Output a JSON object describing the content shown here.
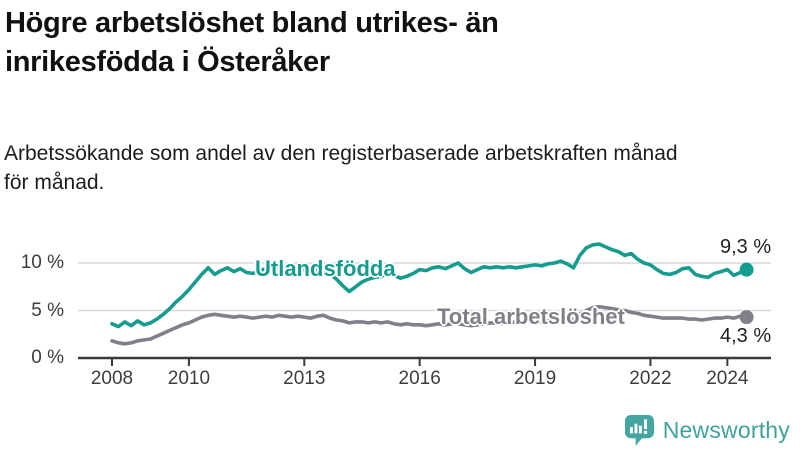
{
  "title": {
    "line1": "Högre arbetslöshet bland utrikes- än",
    "line2": "inrikesfödda i Österåker"
  },
  "subtitle": {
    "line1": "Arbetssökande som andel av den registerbaserade arbetskraften månad",
    "line2": "för månad."
  },
  "footer": {
    "brand": "Newsworthy",
    "logo_icon": "newsworthy-speech-bubble-bar-chart-icon",
    "brand_color": "#3ea39b"
  },
  "colors": {
    "background": "#ffffff",
    "title_text": "#111111",
    "axis": "#3a3a3a",
    "gridline": "#d9d9d9",
    "tick_text": "#3d3d3d",
    "value_text": "#1f1f1f"
  },
  "chart_data": {
    "type": "line",
    "unit": "%",
    "x_start_year": 2008,
    "x_step_years": 0.166667,
    "x_end_year": 2024.5,
    "x_ticks": [
      2008,
      2010,
      2013,
      2016,
      2019,
      2022,
      2024
    ],
    "x_tick_labels": [
      "2008",
      "2010",
      "2013",
      "2016",
      "2019",
      "2022",
      "2024"
    ],
    "y_ticks": [
      0,
      5,
      10
    ],
    "y_tick_labels": [
      "0 %",
      "5 %",
      "10 %"
    ],
    "ylim": [
      0,
      12.8
    ],
    "grid": "horizontal-only",
    "legend": "inline-labels-on-lines",
    "series": [
      {
        "name": "Utlandsfödda",
        "color": "#169c8e",
        "end_label": "9,3 %",
        "end_value": 9.3,
        "values": [
          3.6,
          3.3,
          3.8,
          3.4,
          3.9,
          3.5,
          3.7,
          4.1,
          4.6,
          5.2,
          5.9,
          6.5,
          7.2,
          8.0,
          8.8,
          9.5,
          8.8,
          9.2,
          9.5,
          9.1,
          9.4,
          9.0,
          8.9,
          9.2,
          9.4,
          9.2,
          9.5,
          9.3,
          9.1,
          9.3,
          9.3,
          9.4,
          9.2,
          9.0,
          8.8,
          8.3,
          7.6,
          7.0,
          7.5,
          8.0,
          8.3,
          8.5,
          8.6,
          8.9,
          8.7,
          8.4,
          8.6,
          8.9,
          9.3,
          9.2,
          9.5,
          9.6,
          9.4,
          9.7,
          10.0,
          9.4,
          9.0,
          9.3,
          9.6,
          9.5,
          9.6,
          9.5,
          9.6,
          9.5,
          9.6,
          9.7,
          9.8,
          9.7,
          9.9,
          10.0,
          10.2,
          9.9,
          9.5,
          10.8,
          11.6,
          11.9,
          12.0,
          11.7,
          11.4,
          11.2,
          10.8,
          11.0,
          10.4,
          10.0,
          9.8,
          9.3,
          8.9,
          8.8,
          9.0,
          9.4,
          9.5,
          8.8,
          8.6,
          8.5,
          8.9,
          9.1,
          9.3,
          8.7,
          9.0,
          9.3
        ]
      },
      {
        "name": "Total arbetslöshet",
        "color": "#80808a",
        "end_label": "4,3 %",
        "end_value": 4.3,
        "values": [
          1.8,
          1.6,
          1.5,
          1.6,
          1.8,
          1.9,
          2.0,
          2.3,
          2.6,
          2.9,
          3.2,
          3.5,
          3.7,
          4.0,
          4.3,
          4.5,
          4.6,
          4.5,
          4.4,
          4.3,
          4.4,
          4.3,
          4.2,
          4.3,
          4.4,
          4.3,
          4.5,
          4.4,
          4.3,
          4.4,
          4.3,
          4.2,
          4.4,
          4.5,
          4.2,
          4.0,
          3.9,
          3.7,
          3.8,
          3.8,
          3.7,
          3.8,
          3.7,
          3.8,
          3.6,
          3.5,
          3.6,
          3.5,
          3.5,
          3.4,
          3.5,
          3.6,
          3.5,
          3.6,
          3.6,
          3.5,
          3.4,
          3.5,
          3.6,
          3.7,
          3.7,
          3.6,
          3.7,
          3.8,
          3.8,
          3.9,
          3.9,
          3.8,
          3.9,
          4.0,
          3.9,
          4.0,
          4.1,
          4.6,
          5.0,
          5.3,
          5.4,
          5.3,
          5.2,
          5.1,
          5.0,
          4.8,
          4.7,
          4.5,
          4.4,
          4.3,
          4.2,
          4.2,
          4.2,
          4.2,
          4.1,
          4.1,
          4.0,
          4.1,
          4.2,
          4.2,
          4.3,
          4.2,
          4.4,
          4.3
        ]
      }
    ]
  }
}
